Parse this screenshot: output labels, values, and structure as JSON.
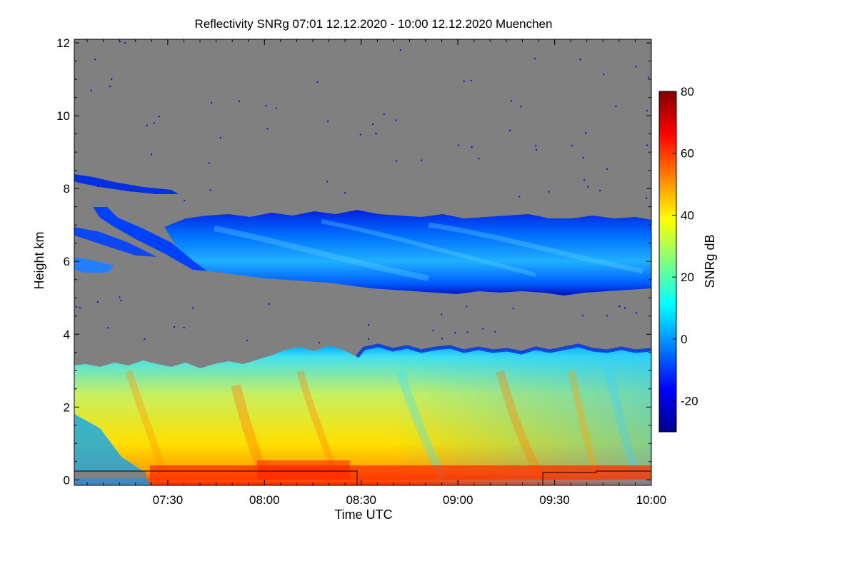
{
  "chart_data": {
    "type": "heatmap",
    "title": "Reflectivity SNRg   07:01 12.12.2020 - 10:00 12.12.2020 Muenchen",
    "xlabel": "Time UTC",
    "ylabel": "Height km",
    "x_range_minutes": [
      421,
      600
    ],
    "x_ticks": [
      {
        "label": "07:30",
        "minutes": 450
      },
      {
        "label": "08:00",
        "minutes": 480
      },
      {
        "label": "08:30",
        "minutes": 510
      },
      {
        "label": "09:00",
        "minutes": 540
      },
      {
        "label": "09:30",
        "minutes": 570
      },
      {
        "label": "10:00",
        "minutes": 600
      }
    ],
    "ylim": [
      -0.15,
      12.1
    ],
    "y_ticks": [
      "0",
      "2",
      "4",
      "6",
      "8",
      "10",
      "12"
    ],
    "colorbar": {
      "label": "SNRg dB",
      "range": [
        -30,
        80
      ],
      "ticks": [
        "-20",
        "0",
        "20",
        "40",
        "60",
        "80"
      ],
      "colors": [
        "#00008f",
        "#0000ff",
        "#0080ff",
        "#00ffff",
        "#80ff80",
        "#ffff00",
        "#ff8000",
        "#ff0000",
        "#800000"
      ]
    },
    "background_color": "#808080",
    "layers": [
      {
        "name_visible": false,
        "description": "ice cloud layer",
        "base_km": 5.3,
        "top_km": 7.2,
        "snr_dB": [
          -15,
          10
        ]
      },
      {
        "name_visible": false,
        "description": "low cloud / precipitation layer",
        "base_km": 0.0,
        "top_km": 3.8,
        "snr_dB": [
          10,
          70
        ]
      }
    ]
  }
}
